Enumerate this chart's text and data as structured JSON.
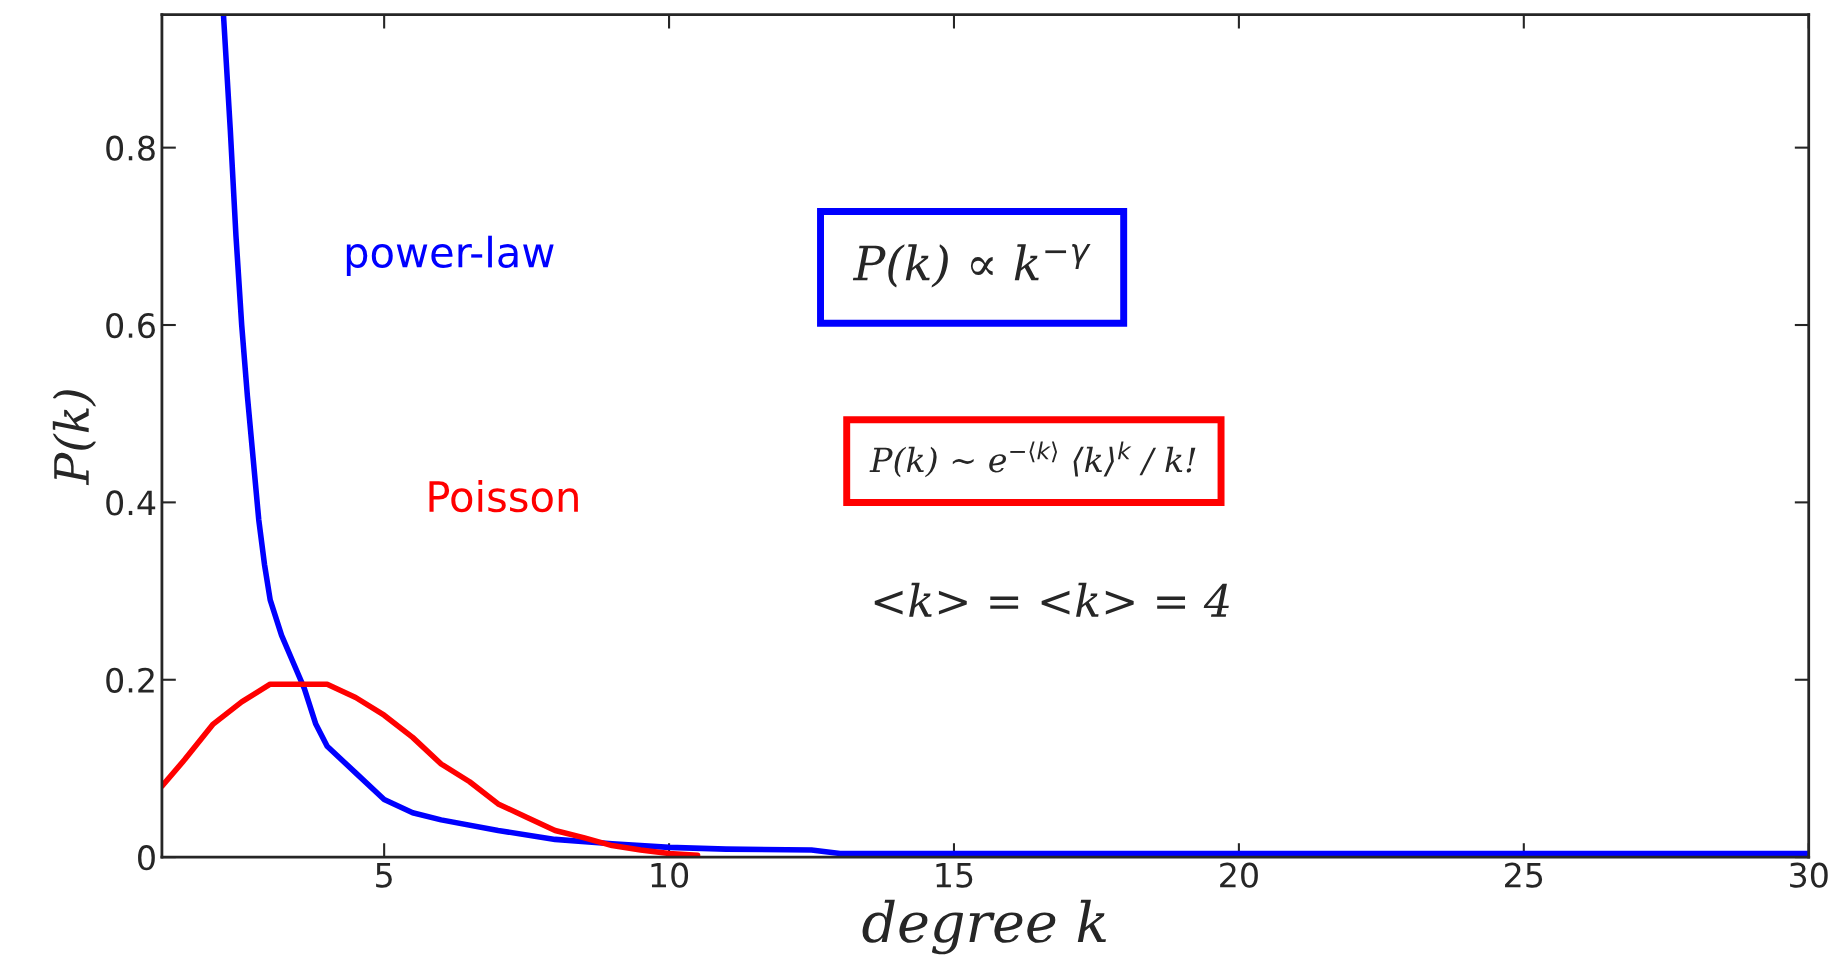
{
  "chart_data": {
    "type": "line",
    "xlabel": "degree k",
    "ylabel": "P(k)",
    "xlim": [
      1.1,
      30
    ],
    "ylim": [
      0,
      0.95
    ],
    "xticks": [
      5,
      10,
      15,
      20,
      25,
      30
    ],
    "yticks": [
      0,
      0.2,
      0.4,
      0.6,
      0.8
    ],
    "grid": false,
    "series": [
      {
        "name": "power-law",
        "color": "#0000ff",
        "x": [
          2.18,
          2.3,
          2.4,
          2.5,
          2.6,
          2.7,
          2.8,
          2.9,
          3.0,
          3.2,
          3.4,
          3.6,
          3.8,
          4.0,
          4.5,
          5,
          5.5,
          6,
          7,
          8,
          9,
          10,
          11,
          12.5,
          13,
          20,
          30
        ],
        "values": [
          0.95,
          0.82,
          0.7,
          0.6,
          0.52,
          0.45,
          0.38,
          0.33,
          0.29,
          0.25,
          0.22,
          0.19,
          0.15,
          0.125,
          0.095,
          0.065,
          0.05,
          0.042,
          0.03,
          0.02,
          0.015,
          0.011,
          0.009,
          0.008,
          0.004,
          0.004,
          0.004
        ]
      },
      {
        "name": "Poisson",
        "color": "#ff0000",
        "x": [
          1.1,
          1.5,
          2,
          2.5,
          3,
          4,
          4.5,
          5,
          5.5,
          6,
          6.5,
          7,
          7.5,
          8,
          8.5,
          9,
          9.5,
          10,
          10.5
        ],
        "values": [
          0.08,
          0.11,
          0.15,
          0.175,
          0.195,
          0.195,
          0.18,
          0.16,
          0.135,
          0.105,
          0.085,
          0.06,
          0.045,
          0.03,
          0.022,
          0.013,
          0.008,
          0.004,
          0.002
        ]
      }
    ],
    "annotations": [
      "P(k) ∝ k$^{−γ}$",
      "P(k) ∼ e$^{−⟨k⟩}$ ⟨k⟩$^{k}$ / k!",
      "<k> = <k> = 4"
    ]
  }
}
